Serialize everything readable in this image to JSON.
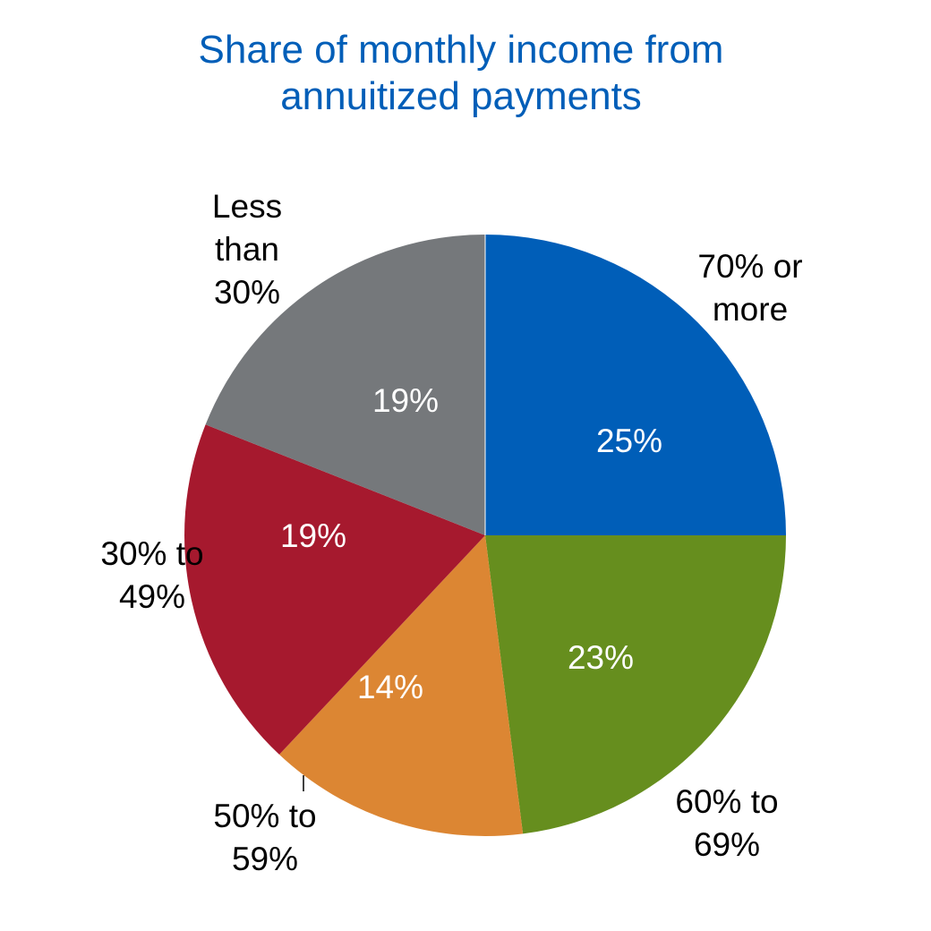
{
  "chart_data": {
    "type": "pie",
    "title": [
      "Share of monthly income from",
      "annuitized payments"
    ],
    "start": "12 o'clock, clockwise",
    "slices": [
      {
        "label": [
          "70% or",
          "more"
        ],
        "value": 25,
        "value_label": "25%",
        "color": "#005eb8"
      },
      {
        "label": [
          "60% to",
          "69%"
        ],
        "value": 23,
        "value_label": "23%",
        "color": "#668e1e"
      },
      {
        "label": [
          "50% to",
          "59%"
        ],
        "value": 14,
        "value_label": "14%",
        "color": "#dc8633"
      },
      {
        "label": [
          "30% to",
          "49%"
        ],
        "value": 19,
        "value_label": "19%",
        "color": "#a6192e"
      },
      {
        "label": [
          "Less",
          "than",
          "30%"
        ],
        "value": 19,
        "value_label": "19%",
        "color": "#75787b"
      }
    ],
    "legend": "none"
  }
}
